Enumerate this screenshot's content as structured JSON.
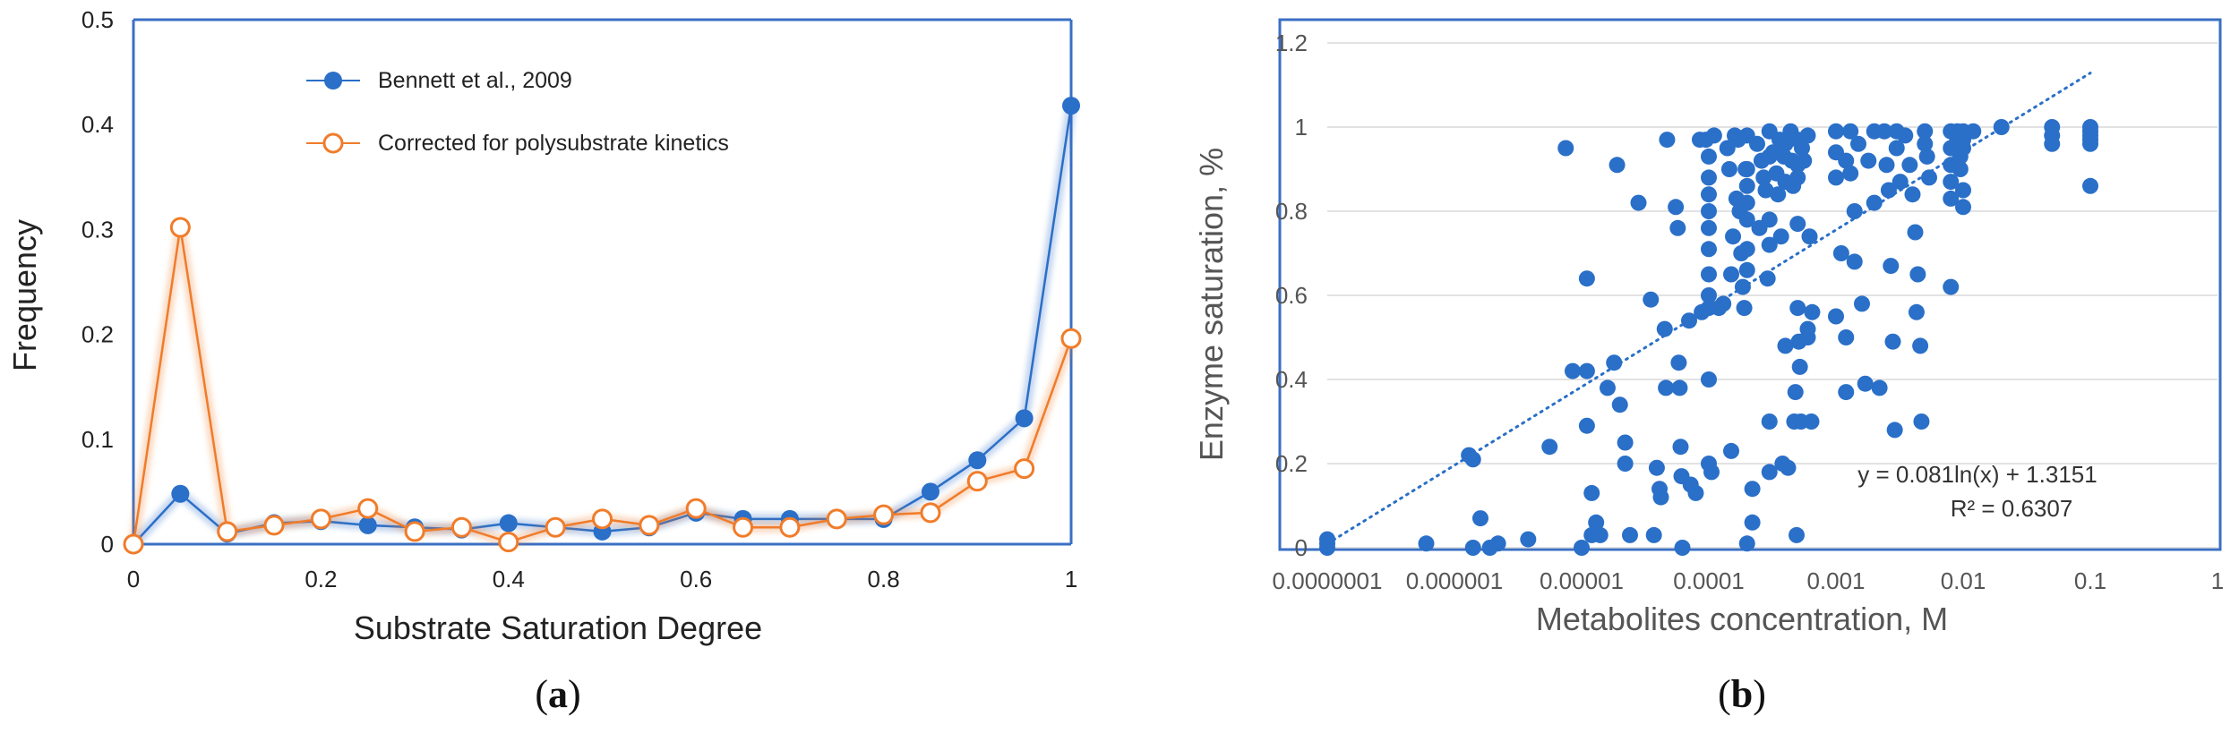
{
  "chart_data": [
    {
      "type": "line",
      "title": "",
      "xlabel": "Substrate Saturation Degree",
      "ylabel": "Frequency",
      "xlim": [
        0,
        1
      ],
      "ylim": [
        0,
        0.5
      ],
      "xticks": [
        0,
        0.2,
        0.4,
        0.6,
        0.8,
        1
      ],
      "xtick_labels": [
        "0",
        "0.2",
        "0.4",
        "0.6",
        "0.8",
        "1"
      ],
      "yticks": [
        0,
        0.1,
        0.2,
        0.3,
        0.4,
        0.5
      ],
      "ytick_labels": [
        "0",
        "0.1",
        "0.2",
        "0.3",
        "0.4",
        "0.5"
      ],
      "grid": false,
      "legend_position": "top-center",
      "x": [
        0,
        0.05,
        0.1,
        0.15,
        0.2,
        0.25,
        0.3,
        0.35,
        0.4,
        0.45,
        0.5,
        0.55,
        0.6,
        0.65,
        0.7,
        0.75,
        0.8,
        0.85,
        0.9,
        0.95,
        1
      ],
      "series": [
        {
          "name": "Bennett et al., 2009",
          "color": "#2a6fc8",
          "marker": "filled-circle",
          "values": [
            0,
            0.048,
            0.01,
            0.02,
            0.022,
            0.018,
            0.016,
            0.014,
            0.02,
            0.016,
            0.012,
            0.016,
            0.03,
            0.024,
            0.024,
            0.024,
            0.024,
            0.05,
            0.08,
            0.12,
            0.418
          ]
        },
        {
          "name": "Corrected for polysubstrate kinetics",
          "color": "#f07c2a",
          "marker": "open-circle",
          "values": [
            0,
            0.302,
            0.012,
            0.018,
            0.024,
            0.034,
            0.012,
            0.016,
            0.002,
            0.016,
            0.024,
            0.018,
            0.034,
            0.016,
            0.016,
            0.024,
            0.028,
            0.03,
            0.06,
            0.072,
            0.196
          ]
        }
      ],
      "panel_label": {
        "open": "(",
        "letter": "a",
        "close": ")"
      }
    },
    {
      "type": "scatter",
      "title": "",
      "xlabel": "Metabolites concentration, M",
      "ylabel": "Enzyme saturation, %",
      "xscale": "log",
      "xlim": [
        1e-07,
        1
      ],
      "ylim": [
        0,
        1.2
      ],
      "xticks": [
        1e-07,
        1e-06,
        1e-05,
        0.0001,
        0.001,
        0.01,
        0.1,
        1
      ],
      "xtick_labels": [
        "0.0000001",
        "0.000001",
        "0.00001",
        "0.0001",
        "0.001",
        "0.01",
        "0.1",
        "1"
      ],
      "yticks": [
        0,
        0.2,
        0.4,
        0.6,
        0.8,
        1,
        1.2
      ],
      "ytick_labels": [
        "0",
        "0.2",
        "0.4",
        "0.6",
        "0.8",
        "1",
        "1.2"
      ],
      "grid": "horizontal",
      "color": "#2a6fc8",
      "trendline": {
        "type": "logarithmic",
        "a": 0.081,
        "b": 1.3151,
        "x_range": [
          1e-07,
          0.1
        ],
        "equation": "y = 0.081ln(x) + 1.3151",
        "r2": "R² = 0.6307"
      },
      "points": [
        [
          1e-07,
          0.02
        ],
        [
          1e-07,
          0.0
        ],
        [
          1e-07,
          0.01
        ],
        [
          6e-07,
          0.01
        ],
        [
          1.3e-06,
          0.22
        ],
        [
          1.4e-06,
          0.21
        ],
        [
          1.4e-06,
          0.0
        ],
        [
          1.6e-06,
          0.07
        ],
        [
          1.9e-06,
          0.0
        ],
        [
          2.2e-06,
          0.01
        ],
        [
          3.8e-06,
          0.02
        ],
        [
          5.6e-06,
          0.24
        ],
        [
          7.5e-06,
          0.95
        ],
        [
          8.5e-06,
          0.42
        ],
        [
          1e-05,
          0.0
        ],
        [
          1.1e-05,
          0.64
        ],
        [
          1.1e-05,
          0.42
        ],
        [
          1.1e-05,
          0.29
        ],
        [
          1.2e-05,
          0.13
        ],
        [
          1.2e-05,
          0.03
        ],
        [
          1.3e-05,
          0.06
        ],
        [
          1.4e-05,
          0.03
        ],
        [
          1.6e-05,
          0.38
        ],
        [
          1.8e-05,
          0.44
        ],
        [
          1.9e-05,
          0.91
        ],
        [
          2e-05,
          0.34
        ],
        [
          2.2e-05,
          0.25
        ],
        [
          2.2e-05,
          0.2
        ],
        [
          2.4e-05,
          0.03
        ],
        [
          2.8e-05,
          0.82
        ],
        [
          3.5e-05,
          0.59
        ],
        [
          3.7e-05,
          0.03
        ],
        [
          3.9e-05,
          0.19
        ],
        [
          4.1e-05,
          0.14
        ],
        [
          4.2e-05,
          0.12
        ],
        [
          4.5e-05,
          0.52
        ],
        [
          4.6e-05,
          0.38
        ],
        [
          4.7e-05,
          0.97
        ],
        [
          5.5e-05,
          0.81
        ],
        [
          5.7e-05,
          0.76
        ],
        [
          5.8e-05,
          0.44
        ],
        [
          5.9e-05,
          0.38
        ],
        [
          6e-05,
          0.24
        ],
        [
          6.1e-05,
          0.17
        ],
        [
          6.2e-05,
          0.0
        ],
        [
          7e-05,
          0.54
        ],
        [
          7.2e-05,
          0.15
        ],
        [
          7.9e-05,
          0.13
        ],
        [
          8.5e-05,
          0.97
        ],
        [
          8.8e-05,
          0.56
        ],
        [
          9.5e-05,
          0.97
        ],
        [
          0.0001,
          0.93
        ],
        [
          0.0001,
          0.88
        ],
        [
          0.0001,
          0.84
        ],
        [
          0.0001,
          0.8
        ],
        [
          0.0001,
          0.76
        ],
        [
          0.0001,
          0.71
        ],
        [
          0.0001,
          0.65
        ],
        [
          0.0001,
          0.6
        ],
        [
          0.0001,
          0.57
        ],
        [
          0.0001,
          0.4
        ],
        [
          0.0001,
          0.2
        ],
        [
          0.000105,
          0.18
        ],
        [
          0.00011,
          0.98
        ],
        [
          0.00012,
          0.57
        ],
        [
          0.00013,
          0.58
        ],
        [
          0.00014,
          0.95
        ],
        [
          0.000145,
          0.9
        ],
        [
          0.00015,
          0.65
        ],
        [
          0.00015,
          0.23
        ],
        [
          0.000155,
          0.74
        ],
        [
          0.00016,
          0.98
        ],
        [
          0.000165,
          0.83
        ],
        [
          0.00017,
          0.97
        ],
        [
          0.000175,
          0.8
        ],
        [
          0.00018,
          0.7
        ],
        [
          0.000185,
          0.62
        ],
        [
          0.00019,
          0.57
        ],
        [
          0.000195,
          0.9
        ],
        [
          0.0002,
          0.98
        ],
        [
          0.0002,
          0.9
        ],
        [
          0.0002,
          0.86
        ],
        [
          0.0002,
          0.82
        ],
        [
          0.0002,
          0.78
        ],
        [
          0.0002,
          0.71
        ],
        [
          0.0002,
          0.66
        ],
        [
          0.0002,
          0.01
        ],
        [
          0.00022,
          0.06
        ],
        [
          0.00022,
          0.14
        ],
        [
          0.00024,
          0.96
        ],
        [
          0.00025,
          0.76
        ],
        [
          0.00026,
          0.92
        ],
        [
          0.00027,
          0.88
        ],
        [
          0.00028,
          0.85
        ],
        [
          0.00029,
          0.64
        ],
        [
          0.0003,
          0.99
        ],
        [
          0.0003,
          0.93
        ],
        [
          0.0003,
          0.78
        ],
        [
          0.0003,
          0.72
        ],
        [
          0.0003,
          0.3
        ],
        [
          0.0003,
          0.18
        ],
        [
          0.00032,
          0.94
        ],
        [
          0.00034,
          0.89
        ],
        [
          0.00035,
          0.84
        ],
        [
          0.00036,
          0.97
        ],
        [
          0.00037,
          0.74
        ],
        [
          0.00038,
          0.2
        ],
        [
          0.00039,
          0.93
        ],
        [
          0.0004,
          0.96
        ],
        [
          0.0004,
          0.87
        ],
        [
          0.0004,
          0.48
        ],
        [
          0.00042,
          0.19
        ],
        [
          0.00044,
          0.99
        ],
        [
          0.00045,
          0.92
        ],
        [
          0.00046,
          0.86
        ],
        [
          0.00047,
          0.3
        ],
        [
          0.00048,
          0.37
        ],
        [
          0.00049,
          0.03
        ],
        [
          0.0005,
          0.97
        ],
        [
          0.0005,
          0.91
        ],
        [
          0.0005,
          0.88
        ],
        [
          0.0005,
          0.77
        ],
        [
          0.0005,
          0.57
        ],
        [
          0.00051,
          0.49
        ],
        [
          0.00052,
          0.43
        ],
        [
          0.00053,
          0.3
        ],
        [
          0.00054,
          0.95
        ],
        [
          0.00056,
          0.92
        ],
        [
          0.0006,
          0.98
        ],
        [
          0.0006,
          0.52
        ],
        [
          0.0006,
          0.5
        ],
        [
          0.00062,
          0.74
        ],
        [
          0.00064,
          0.3
        ],
        [
          0.00065,
          0.56
        ],
        [
          0.001,
          0.99
        ],
        [
          0.001,
          0.94
        ],
        [
          0.001,
          0.88
        ],
        [
          0.001,
          0.55
        ],
        [
          0.0011,
          0.7
        ],
        [
          0.0012,
          0.92
        ],
        [
          0.0012,
          0.5
        ],
        [
          0.0012,
          0.37
        ],
        [
          0.0013,
          0.99
        ],
        [
          0.0013,
          0.89
        ],
        [
          0.0014,
          0.8
        ],
        [
          0.0014,
          0.68
        ],
        [
          0.0015,
          0.96
        ],
        [
          0.0016,
          0.58
        ],
        [
          0.0017,
          0.39
        ],
        [
          0.0018,
          0.92
        ],
        [
          0.002,
          0.99
        ],
        [
          0.002,
          0.82
        ],
        [
          0.0022,
          0.38
        ],
        [
          0.0024,
          0.99
        ],
        [
          0.0025,
          0.91
        ],
        [
          0.0026,
          0.85
        ],
        [
          0.0027,
          0.67
        ],
        [
          0.0028,
          0.49
        ],
        [
          0.0029,
          0.28
        ],
        [
          0.003,
          0.99
        ],
        [
          0.003,
          0.95
        ],
        [
          0.0032,
          0.87
        ],
        [
          0.0035,
          0.98
        ],
        [
          0.0038,
          0.91
        ],
        [
          0.004,
          0.84
        ],
        [
          0.0042,
          0.75
        ],
        [
          0.0043,
          0.56
        ],
        [
          0.0044,
          0.65
        ],
        [
          0.0046,
          0.48
        ],
        [
          0.0047,
          0.3
        ],
        [
          0.005,
          0.99
        ],
        [
          0.005,
          0.96
        ],
        [
          0.0052,
          0.93
        ],
        [
          0.0054,
          0.88
        ],
        [
          0.008,
          0.99
        ],
        [
          0.008,
          0.95
        ],
        [
          0.008,
          0.91
        ],
        [
          0.008,
          0.87
        ],
        [
          0.008,
          0.83
        ],
        [
          0.008,
          0.62
        ],
        [
          0.009,
          0.99
        ],
        [
          0.009,
          0.97
        ],
        [
          0.0095,
          0.93
        ],
        [
          0.0095,
          0.9
        ],
        [
          0.01,
          0.99
        ],
        [
          0.01,
          0.97
        ],
        [
          0.01,
          0.95
        ],
        [
          0.01,
          0.85
        ],
        [
          0.01,
          0.81
        ],
        [
          0.012,
          0.99
        ],
        [
          0.02,
          1.0
        ],
        [
          0.05,
          1.0
        ],
        [
          0.05,
          0.98
        ],
        [
          0.05,
          0.96
        ],
        [
          0.1,
          1.0
        ],
        [
          0.1,
          0.99
        ],
        [
          0.1,
          0.98
        ],
        [
          0.1,
          0.97
        ],
        [
          0.1,
          0.96
        ],
        [
          0.1,
          0.86
        ]
      ],
      "panel_label": {
        "open": "(",
        "letter": "b",
        "close": ")"
      }
    }
  ]
}
